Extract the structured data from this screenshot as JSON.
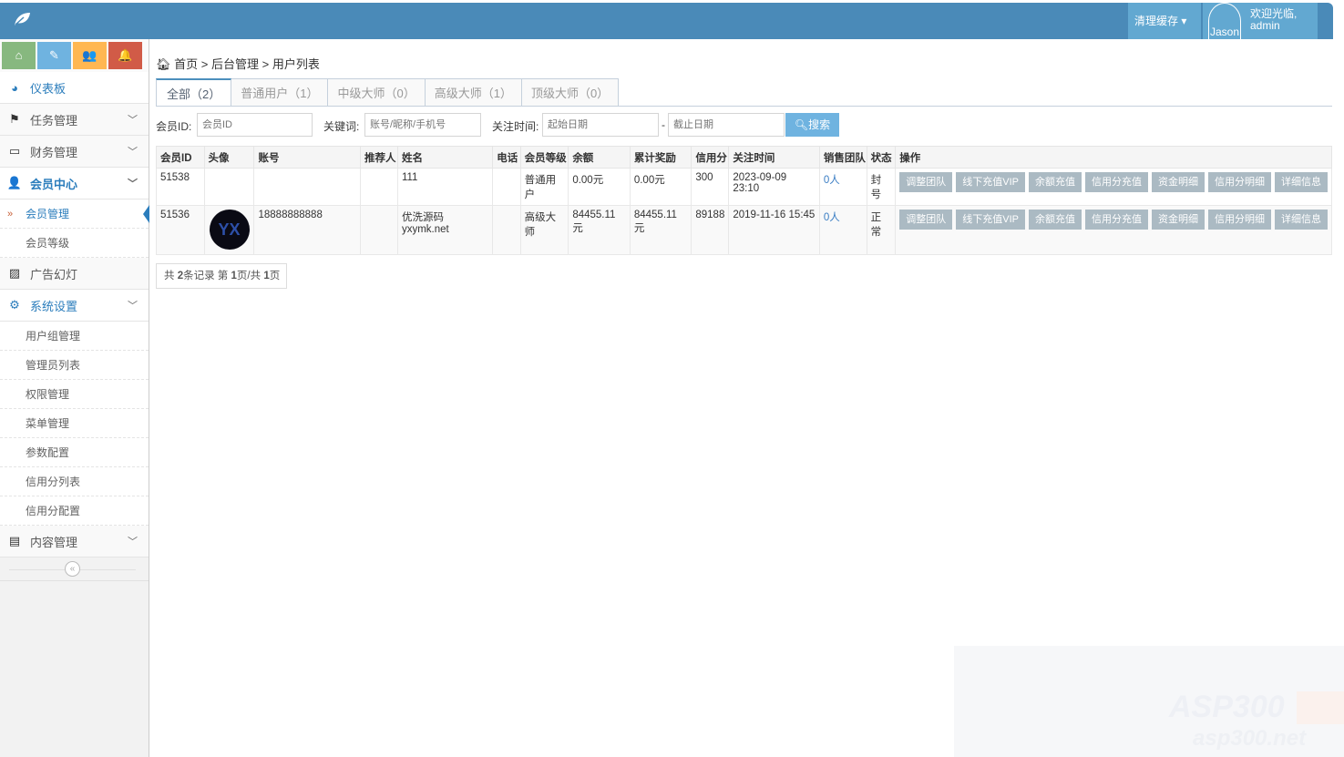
{
  "navbar": {
    "logo_icon": "leaf-icon",
    "clear_cache": "清理缓存",
    "avatar_alt": "Jason",
    "welcome": "欢迎光临,",
    "username": "admin",
    "color": "#4a8ab8"
  },
  "shortcuts": [
    {
      "icon": "home-icon",
      "color": "#87b87f"
    },
    {
      "icon": "pencil-icon",
      "color": "#6fb3e0"
    },
    {
      "icon": "users-icon",
      "color": "#ffb752"
    },
    {
      "icon": "bell-icon",
      "color": "#d15b47"
    }
  ],
  "sidebar": {
    "dashboard": "仪表板",
    "tasks": "任务管理",
    "finance": "财务管理",
    "members": "会员中心",
    "members_sub": [
      "会员管理",
      "会员等级"
    ],
    "ads": "广告幻灯",
    "settings": "系统设置",
    "settings_sub": [
      "用户组管理",
      "管理员列表",
      "权限管理",
      "菜单管理",
      "参数配置",
      "信用分列表",
      "信用分配置"
    ],
    "content": "内容管理",
    "collapse": "«"
  },
  "breadcrumb": {
    "home": "首页",
    "sep": ">",
    "parent": "后台管理",
    "current": "用户列表"
  },
  "tabs": [
    "全部（2）",
    "普通用户（1）",
    "中级大师（0）",
    "高级大师（1）",
    "顶级大师（0）"
  ],
  "filters": {
    "member_id_label": "会员ID:",
    "member_id_placeholder": "会员ID",
    "keyword_label": "关键词:",
    "keyword_placeholder": "账号/昵称/手机号",
    "time_label": "关注时间:",
    "start_placeholder": "起始日期",
    "dash": "-",
    "end_placeholder": "截止日期",
    "search": "搜索"
  },
  "table": {
    "headers": [
      "会员ID",
      "头像",
      "账号",
      "推荐人",
      "姓名",
      "电话",
      "会员等级",
      "余额",
      "累计奖励",
      "信用分",
      "关注时间",
      "销售团队",
      "状态",
      "操作"
    ],
    "rows": [
      {
        "id": "51538",
        "account": "",
        "referrer": "",
        "name": "111",
        "phone": "",
        "level": "普通用户",
        "balance": "0.00元",
        "reward": "0.00元",
        "credit": "300",
        "time": "2023-09-09 23:10",
        "team": "0人",
        "status": "封号"
      },
      {
        "id": "51536",
        "account": "18888888888",
        "referrer": "",
        "name": "优洗源码yxymk.net",
        "phone": "",
        "level": "高级大师",
        "balance": "84455.11元",
        "reward": "84455.11元",
        "credit": "89188",
        "time": "2019-11-16 15:45",
        "team": "0人",
        "status": "正常"
      }
    ],
    "actions": [
      "调整团队",
      "线下充值VIP",
      "余额充值",
      "信用分充值",
      "资金明细",
      "信用分明细",
      "详细信息"
    ]
  },
  "pagination": {
    "pre": "共",
    "total": "2",
    "mid1": "条记录 第",
    "page": "1",
    "mid2": "页/共",
    "pages": "1",
    "post": "页"
  },
  "watermark": {
    "line1": "ASP300",
    "line2": "asp300.net"
  }
}
